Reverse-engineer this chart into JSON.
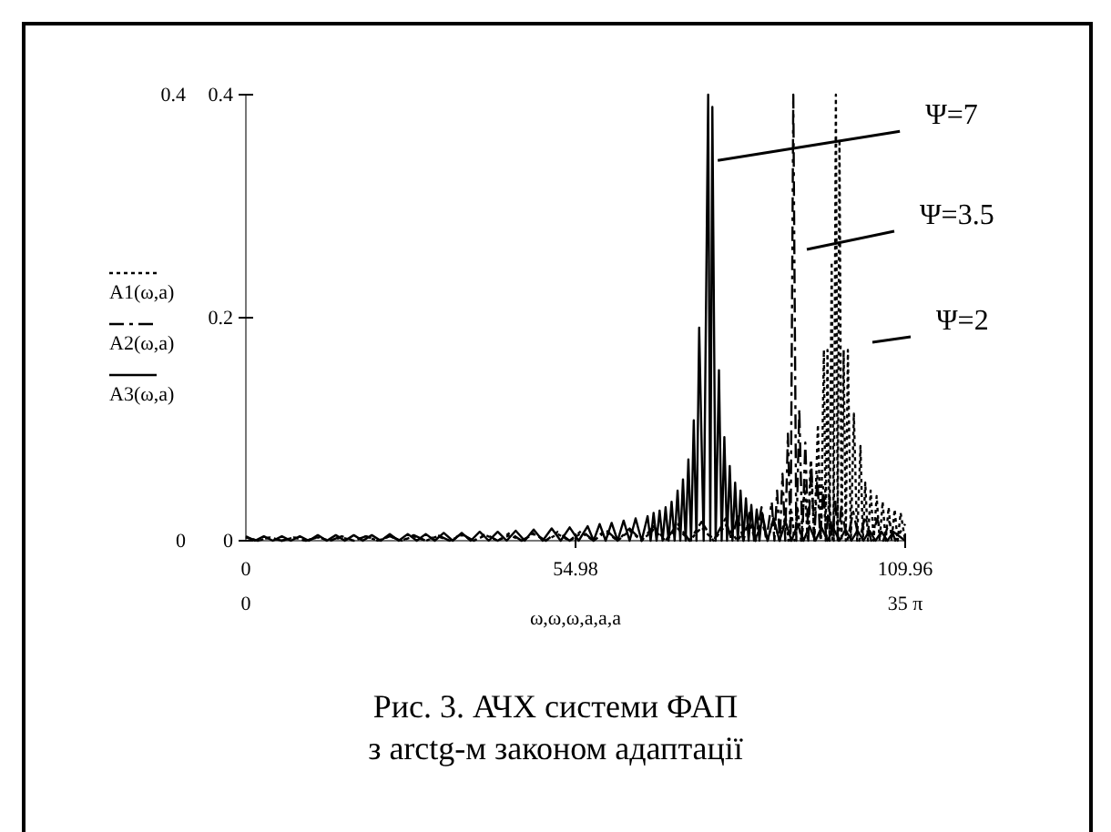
{
  "chart_data": {
    "type": "line",
    "title": "Рис. 3. АЧХ системи ФАП",
    "subtitle": "з arctg-м законом адаптації",
    "xlabel": "ω,ω,ω,a,a,a",
    "xlim": [
      0,
      109.96
    ],
    "xticks": [
      0,
      54.98,
      109.96
    ],
    "ylim": [
      0,
      0.4
    ],
    "yticks": [
      0,
      0.2,
      0.4
    ],
    "x2lim": [
      0,
      109.96
    ],
    "x2ticks": [
      0,
      {
        "value": 109.96,
        "label": "35 π"
      }
    ],
    "y2lim": [
      0,
      0.4
    ],
    "y2ticks": [
      0,
      0.4
    ],
    "legend": "left",
    "grid": false,
    "marker": "none",
    "annotations": [
      {
        "text": "Ψ=7",
        "x": 78.7,
        "y": 0.341
      },
      "Ψ=3.5",
      "Ψ=2"
    ],
    "series": [
      {
        "name": "A1(ω,a)",
        "color": "#000000",
        "line_style": "dotted",
        "x": [
          0,
          2,
          4,
          6,
          8,
          10,
          12,
          14,
          16,
          18,
          20,
          22,
          24,
          26,
          28,
          30,
          32,
          34,
          36,
          38,
          40,
          42,
          44,
          46,
          48,
          50,
          52,
          54,
          56,
          58,
          60,
          62,
          64,
          66,
          68,
          70,
          72,
          74,
          76,
          78,
          80,
          82,
          84,
          85,
          86,
          87,
          88,
          89,
          90,
          90.5,
          91,
          91.5,
          92,
          92.6,
          93.2,
          93.7,
          94.2,
          94.8,
          95.4,
          95.9,
          96.4,
          96.7,
          97,
          97.35,
          97.7,
          98.05,
          98.4,
          98.7,
          99,
          99.35,
          99.7,
          100.05,
          100.4,
          100.9,
          101.4,
          101.95,
          102.5,
          102.9,
          103.3,
          103.75,
          104.2,
          104.7,
          105.2,
          105.7,
          106.2,
          106.7,
          107.2,
          107.7,
          108.2,
          108.7,
          109.2,
          109.96
        ],
        "values": [
          0.003,
          0,
          0.003,
          0,
          0.003,
          0,
          0.003,
          0,
          0.003,
          0,
          0.004,
          0,
          0.004,
          0,
          0.004,
          0,
          0.004,
          0,
          0.005,
          0,
          0.005,
          0,
          0.005,
          0,
          0.006,
          0,
          0.006,
          0,
          0.007,
          0,
          0.008,
          0,
          0.009,
          0,
          0.01,
          0,
          0.011,
          0,
          0.012,
          0,
          0.014,
          0,
          0.016,
          0,
          0.018,
          0,
          0.02,
          0,
          0.022,
          0,
          0.026,
          0,
          0.03,
          0,
          0.05,
          0,
          0.072,
          0,
          0.104,
          0,
          0.171,
          0,
          0.171,
          0,
          0.25,
          0,
          0.4,
          0,
          0.36,
          0,
          0.171,
          0,
          0.171,
          0,
          0.114,
          0,
          0.085,
          0,
          0.052,
          0,
          0.045,
          0,
          0.04,
          0,
          0.035,
          0,
          0.03,
          0,
          0.028,
          0,
          0.025,
          0
        ]
      },
      {
        "name": "A2(ω,a)",
        "color": "#000000",
        "line_style": "dashed",
        "x": [
          0,
          2,
          4,
          6,
          8,
          10,
          12,
          14,
          16,
          18,
          20,
          22,
          24,
          26,
          28,
          30,
          32,
          34,
          36,
          38,
          40,
          42,
          44,
          46,
          48,
          50,
          52,
          54,
          56,
          58,
          60,
          62,
          64,
          66,
          68,
          70,
          72,
          74,
          76,
          78,
          80,
          81,
          82,
          83,
          84,
          85,
          86,
          86.8,
          87.7,
          88.15,
          88.6,
          89.05,
          89.5,
          89.95,
          90.4,
          90.85,
          91.3,
          91.8,
          92.3,
          92.8,
          93.3,
          93.8,
          94.3,
          94.8,
          95.3,
          95.8,
          96.3,
          96.8,
          97.3,
          97.8,
          98.3,
          98.8,
          99.3,
          100.3,
          101.3,
          102.3,
          103.3,
          104.3,
          105.3,
          106.3,
          107.3,
          108.3,
          109.96
        ],
        "values": [
          0.003,
          0,
          0.003,
          0,
          0.003,
          0,
          0.003,
          0,
          0.004,
          0,
          0.004,
          0,
          0.004,
          0,
          0.005,
          0,
          0.005,
          0,
          0.006,
          0,
          0.006,
          0,
          0.007,
          0,
          0.007,
          0,
          0.008,
          0,
          0.009,
          0,
          0.01,
          0,
          0.011,
          0,
          0.013,
          0,
          0.015,
          0,
          0.017,
          0,
          0.02,
          0,
          0.022,
          0,
          0.025,
          0,
          0.03,
          0,
          0.035,
          0,
          0.045,
          0,
          0.06,
          0,
          0.096,
          0,
          0.4,
          0,
          0.118,
          0,
          0.088,
          0,
          0.07,
          0,
          0.058,
          0,
          0.048,
          0,
          0.04,
          0,
          0.035,
          0,
          0.03,
          0,
          0.026,
          0,
          0.022,
          0,
          0.02,
          0,
          0.017,
          0,
          0.015
        ]
      },
      {
        "name": "A3(ω,a)",
        "color": "#000000",
        "line_style": "solid",
        "x": [
          0,
          1.5,
          3,
          4.5,
          6,
          7.5,
          9,
          10.5,
          12,
          13.5,
          15,
          16.5,
          18,
          19.5,
          21,
          22.5,
          24,
          25.5,
          27,
          28.5,
          30,
          31.5,
          33,
          34.5,
          36,
          37.5,
          39,
          40.5,
          42,
          43.5,
          45,
          46.5,
          48,
          49.5,
          51,
          52.5,
          54,
          55.5,
          57,
          58,
          59,
          60,
          61,
          62,
          63,
          64,
          65,
          66,
          67,
          67.5,
          68,
          68.5,
          69,
          69.5,
          70,
          70.5,
          71,
          71.5,
          72,
          72.45,
          72.9,
          73.35,
          73.8,
          74.25,
          74.7,
          75.15,
          75.6,
          76.35,
          77.1,
          77.45,
          77.8,
          78.35,
          78.9,
          79.35,
          79.8,
          80.25,
          80.7,
          81.15,
          81.6,
          82.05,
          82.5,
          82.95,
          83.4,
          83.85,
          84.3,
          84.75,
          85.2,
          85.65,
          86.1,
          87,
          88,
          89,
          90,
          91,
          92,
          93,
          94,
          95,
          96,
          97,
          98,
          99,
          100,
          101,
          102,
          103,
          104,
          105,
          106,
          107,
          108,
          109.96
        ],
        "values": [
          0.004,
          0,
          0.004,
          0,
          0.004,
          0,
          0.004,
          0,
          0.005,
          0,
          0.005,
          0,
          0.005,
          0,
          0.005,
          0,
          0.006,
          0,
          0.006,
          0,
          0.006,
          0,
          0.007,
          0,
          0.007,
          0,
          0.008,
          0,
          0.008,
          0,
          0.009,
          0,
          0.01,
          0,
          0.011,
          0,
          0.012,
          0,
          0.013,
          0,
          0.015,
          0,
          0.016,
          0,
          0.018,
          0,
          0.02,
          0,
          0.022,
          0,
          0.025,
          0,
          0.027,
          0,
          0.03,
          0,
          0.035,
          0,
          0.045,
          0,
          0.055,
          0,
          0.073,
          0,
          0.108,
          0,
          0.191,
          0,
          0.4,
          0,
          0.389,
          0,
          0.153,
          0,
          0.093,
          0,
          0.067,
          0,
          0.052,
          0,
          0.045,
          0,
          0.038,
          0,
          0.032,
          0,
          0.028,
          0,
          0.025,
          0,
          0.02,
          0,
          0.017,
          0,
          0.015,
          0,
          0.013,
          0,
          0.012,
          0,
          0.011,
          0,
          0.01,
          0,
          0.009,
          0,
          0.009,
          0,
          0.008,
          0,
          0.008,
          0
        ]
      }
    ]
  }
}
